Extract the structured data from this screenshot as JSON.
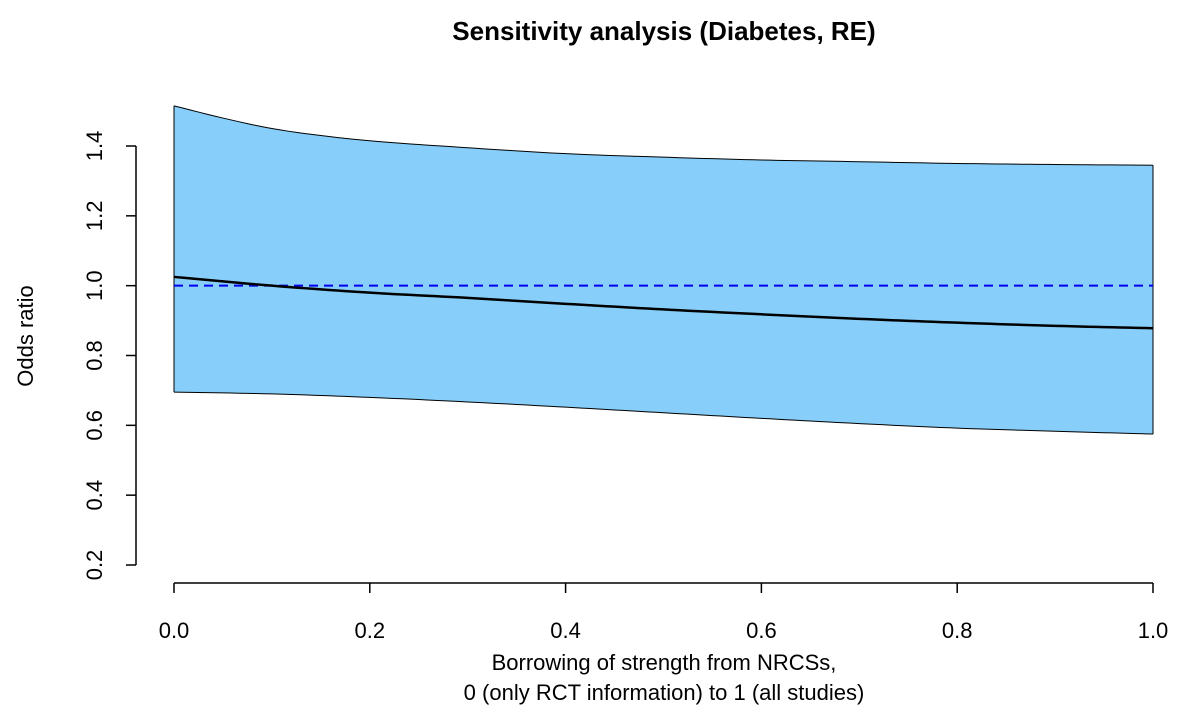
{
  "chart_data": {
    "type": "area",
    "title": "Sensitivity analysis (Diabetes, RE)",
    "xlabel_line1": "Borrowing of strength from NRCSs,",
    "xlabel_line2": "0 (only RCT information) to 1 (all studies)",
    "ylabel": "Odds ratio",
    "xlim": [
      0.0,
      1.0
    ],
    "ylim": [
      0.2,
      1.45
    ],
    "x_ticks": [
      0.0,
      0.2,
      0.4,
      0.6,
      0.8,
      1.0
    ],
    "x_tick_labels": [
      "0.0",
      "0.2",
      "0.4",
      "0.6",
      "0.8",
      "1.0"
    ],
    "y_ticks": [
      0.2,
      0.4,
      0.6,
      0.8,
      1.0,
      1.2,
      1.4
    ],
    "y_tick_labels": [
      "0.2",
      "0.4",
      "0.6",
      "0.8",
      "1.0",
      "1.2",
      "1.4"
    ],
    "grid": false,
    "legend": "none",
    "reference_line": {
      "y": 1.0,
      "style": "dashed",
      "color": "#0000ee"
    },
    "colors": {
      "band_fill": "#87cefa",
      "band_edge": "#000000",
      "estimate_line": "#000000",
      "reference_line": "#0000ee",
      "axis": "#000000"
    },
    "series": [
      {
        "role": "estimate",
        "x": [
          0.0,
          0.1,
          0.2,
          0.3,
          0.4,
          0.5,
          0.6,
          0.7,
          0.8,
          0.9,
          1.0
        ],
        "values": [
          1.025,
          1.0,
          0.98,
          0.965,
          0.948,
          0.932,
          0.918,
          0.905,
          0.894,
          0.885,
          0.878
        ]
      },
      {
        "role": "upper",
        "x": [
          0.0,
          0.05,
          0.1,
          0.15,
          0.2,
          0.3,
          0.4,
          0.5,
          0.6,
          0.7,
          0.8,
          0.9,
          1.0
        ],
        "values": [
          1.515,
          1.48,
          1.45,
          1.43,
          1.415,
          1.395,
          1.378,
          1.368,
          1.36,
          1.355,
          1.35,
          1.347,
          1.345
        ]
      },
      {
        "role": "lower",
        "x": [
          0.0,
          0.1,
          0.2,
          0.3,
          0.4,
          0.5,
          0.6,
          0.7,
          0.8,
          0.9,
          1.0
        ],
        "values": [
          0.695,
          0.69,
          0.68,
          0.667,
          0.652,
          0.636,
          0.62,
          0.605,
          0.592,
          0.583,
          0.575
        ]
      }
    ]
  }
}
